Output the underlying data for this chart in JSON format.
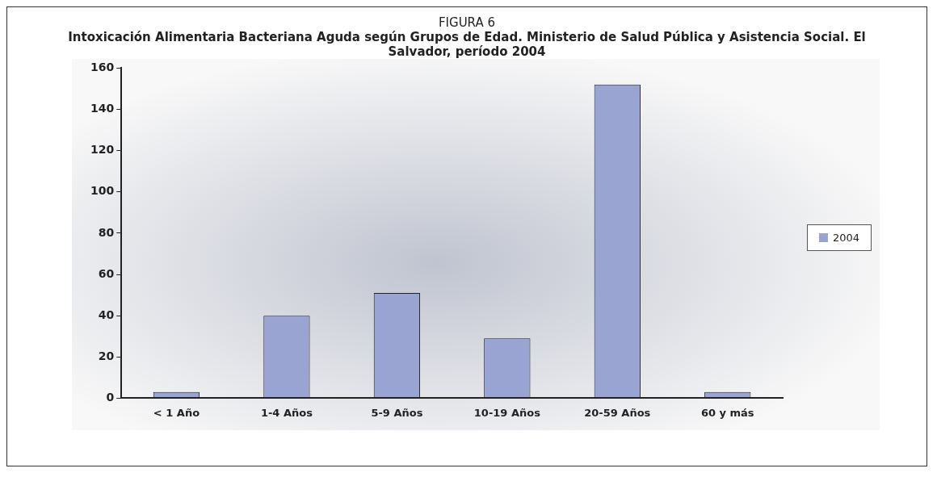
{
  "chart_data": {
    "type": "bar",
    "subtitle": "FIGURA 6",
    "title": "Intoxicación Alimentaria Bacteriana Aguda según Grupos de Edad. Ministerio de Salud Pública y Asistencia Social. El Salvador, período 2004",
    "categories": [
      "< 1 Año",
      "1-4 Años",
      "5-9 Años",
      "10-19 Años",
      "20-59 Años",
      "60 y más"
    ],
    "series": [
      {
        "name": "2004",
        "color": "#99a4d2",
        "values": [
          3,
          40,
          51,
          29,
          152,
          3
        ]
      }
    ],
    "ylim": [
      0,
      160
    ],
    "yticks": [
      0,
      20,
      40,
      60,
      80,
      100,
      120,
      140,
      160
    ],
    "grid": false,
    "legend": "right"
  }
}
